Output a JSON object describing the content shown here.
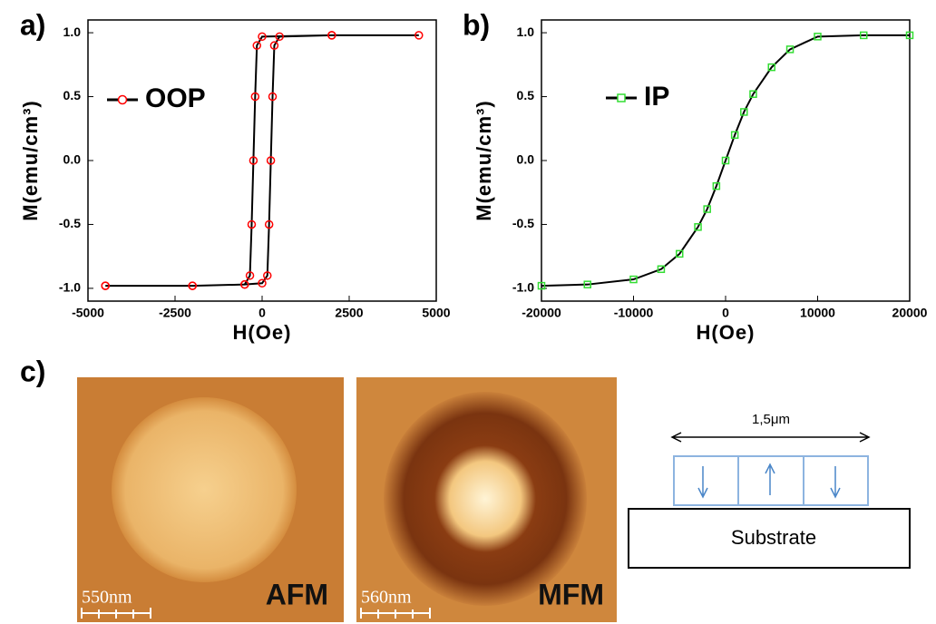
{
  "chart_data": [
    {
      "type": "line",
      "panel_label": "a)",
      "xlabel": "H(Oe)",
      "ylabel": "M(emu/cm³)",
      "x": [
        -4500,
        -2000,
        -500,
        0,
        150,
        200,
        250,
        300,
        350,
        500,
        2000,
        4500,
        2000,
        0,
        -150,
        -200,
        -250,
        -300,
        -350,
        -500,
        -2000,
        -4500
      ],
      "series": [
        {
          "name": "OOP",
          "color": "#ff0000",
          "line_color": "#000000",
          "marker": "circle",
          "values": [
            -0.98,
            -0.98,
            -0.97,
            -0.96,
            -0.9,
            -0.5,
            0,
            0.5,
            0.9,
            0.97,
            0.98,
            0.98,
            0.98,
            0.97,
            0.9,
            0.5,
            0,
            -0.5,
            -0.9,
            -0.97,
            -0.98,
            -0.98
          ]
        }
      ],
      "xlim": [
        -5000,
        5000
      ],
      "xticks": [
        -5000,
        -2500,
        0,
        2500,
        5000
      ],
      "ylim": [
        -1.1,
        1.1
      ],
      "yticks": [
        {
          "value": -1,
          "label": "-1.0"
        },
        -0.5,
        {
          "value": 0,
          "label": "0.0"
        },
        0.5,
        {
          "value": 1,
          "label": "1.0"
        }
      ]
    },
    {
      "type": "line",
      "panel_label": "b)",
      "xlabel": "H(Oe)",
      "ylabel": "M(emu/cm³)",
      "x": [
        -20000,
        -15000,
        -10000,
        -7000,
        -5000,
        -3000,
        -2000,
        -1000,
        0,
        1000,
        2000,
        3000,
        5000,
        7000,
        10000,
        15000,
        20000
      ],
      "series": [
        {
          "name": "IP",
          "color": "#33dd33",
          "line_color": "#000000",
          "marker": "square",
          "values": [
            -0.98,
            -0.97,
            -0.93,
            -0.85,
            -0.73,
            -0.52,
            -0.38,
            -0.2,
            0,
            0.2,
            0.38,
            0.52,
            0.73,
            0.87,
            0.97,
            0.98,
            0.98
          ]
        }
      ],
      "xlim": [
        -20000,
        20000
      ],
      "xticks": [
        -20000,
        -10000,
        0,
        10000,
        20000
      ],
      "ylim": [
        -1.1,
        1.1
      ],
      "yticks": [
        {
          "value": -1,
          "label": "-1.0"
        },
        -0.5,
        {
          "value": 0,
          "label": "0.0"
        },
        0.5,
        {
          "value": 1,
          "label": "1.0"
        }
      ]
    }
  ],
  "panel_c": {
    "label": "c)",
    "afm": {
      "scale": "550nm",
      "name": "AFM"
    },
    "mfm": {
      "scale": "560nm",
      "name": "MFM"
    },
    "diagram": {
      "width": "1,5μm",
      "substrate": "Substrate"
    }
  }
}
